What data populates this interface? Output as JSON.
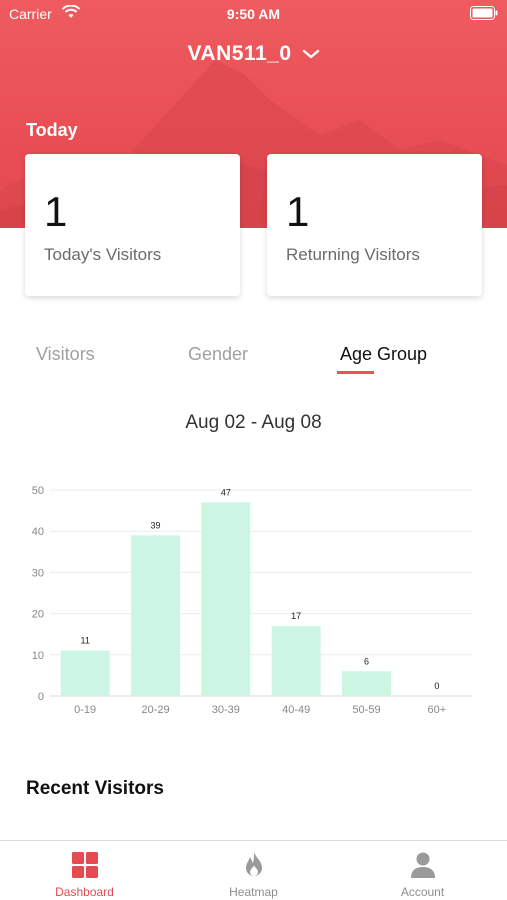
{
  "status_bar": {
    "carrier": "Carrier",
    "time": "9:50 AM"
  },
  "header": {
    "store_name": "VAN511_0",
    "section_label": "Today"
  },
  "stats": [
    {
      "value": "1",
      "label": "Today's Visitors"
    },
    {
      "value": "1",
      "label": "Returning Visitors"
    }
  ],
  "tabs": [
    {
      "label": "Visitors",
      "active": false
    },
    {
      "label": "Gender",
      "active": false
    },
    {
      "label": "Age Group",
      "active": true
    }
  ],
  "date_range": "Aug 02 - Aug 08",
  "chart_data": {
    "type": "bar",
    "categories": [
      "0-19",
      "20-29",
      "30-39",
      "40-49",
      "50-59",
      "60+"
    ],
    "values": [
      11,
      39,
      47,
      17,
      6,
      0
    ],
    "ylim": [
      0,
      50
    ],
    "yticks": [
      0,
      10,
      20,
      30,
      40,
      50
    ],
    "grid": true,
    "bar_color": "#ccf5e4",
    "data_labels": true
  },
  "recent_section": {
    "title": "Recent Visitors"
  },
  "tabbar": [
    {
      "label": "Dashboard",
      "icon": "dashboard-icon",
      "active": true
    },
    {
      "label": "Heatmap",
      "icon": "flame-icon",
      "active": false
    },
    {
      "label": "Account",
      "icon": "person-icon",
      "active": false
    }
  ],
  "colors": {
    "accent": "#e8545a",
    "bar": "#ccf5e4",
    "header": "#ee5b5e"
  }
}
